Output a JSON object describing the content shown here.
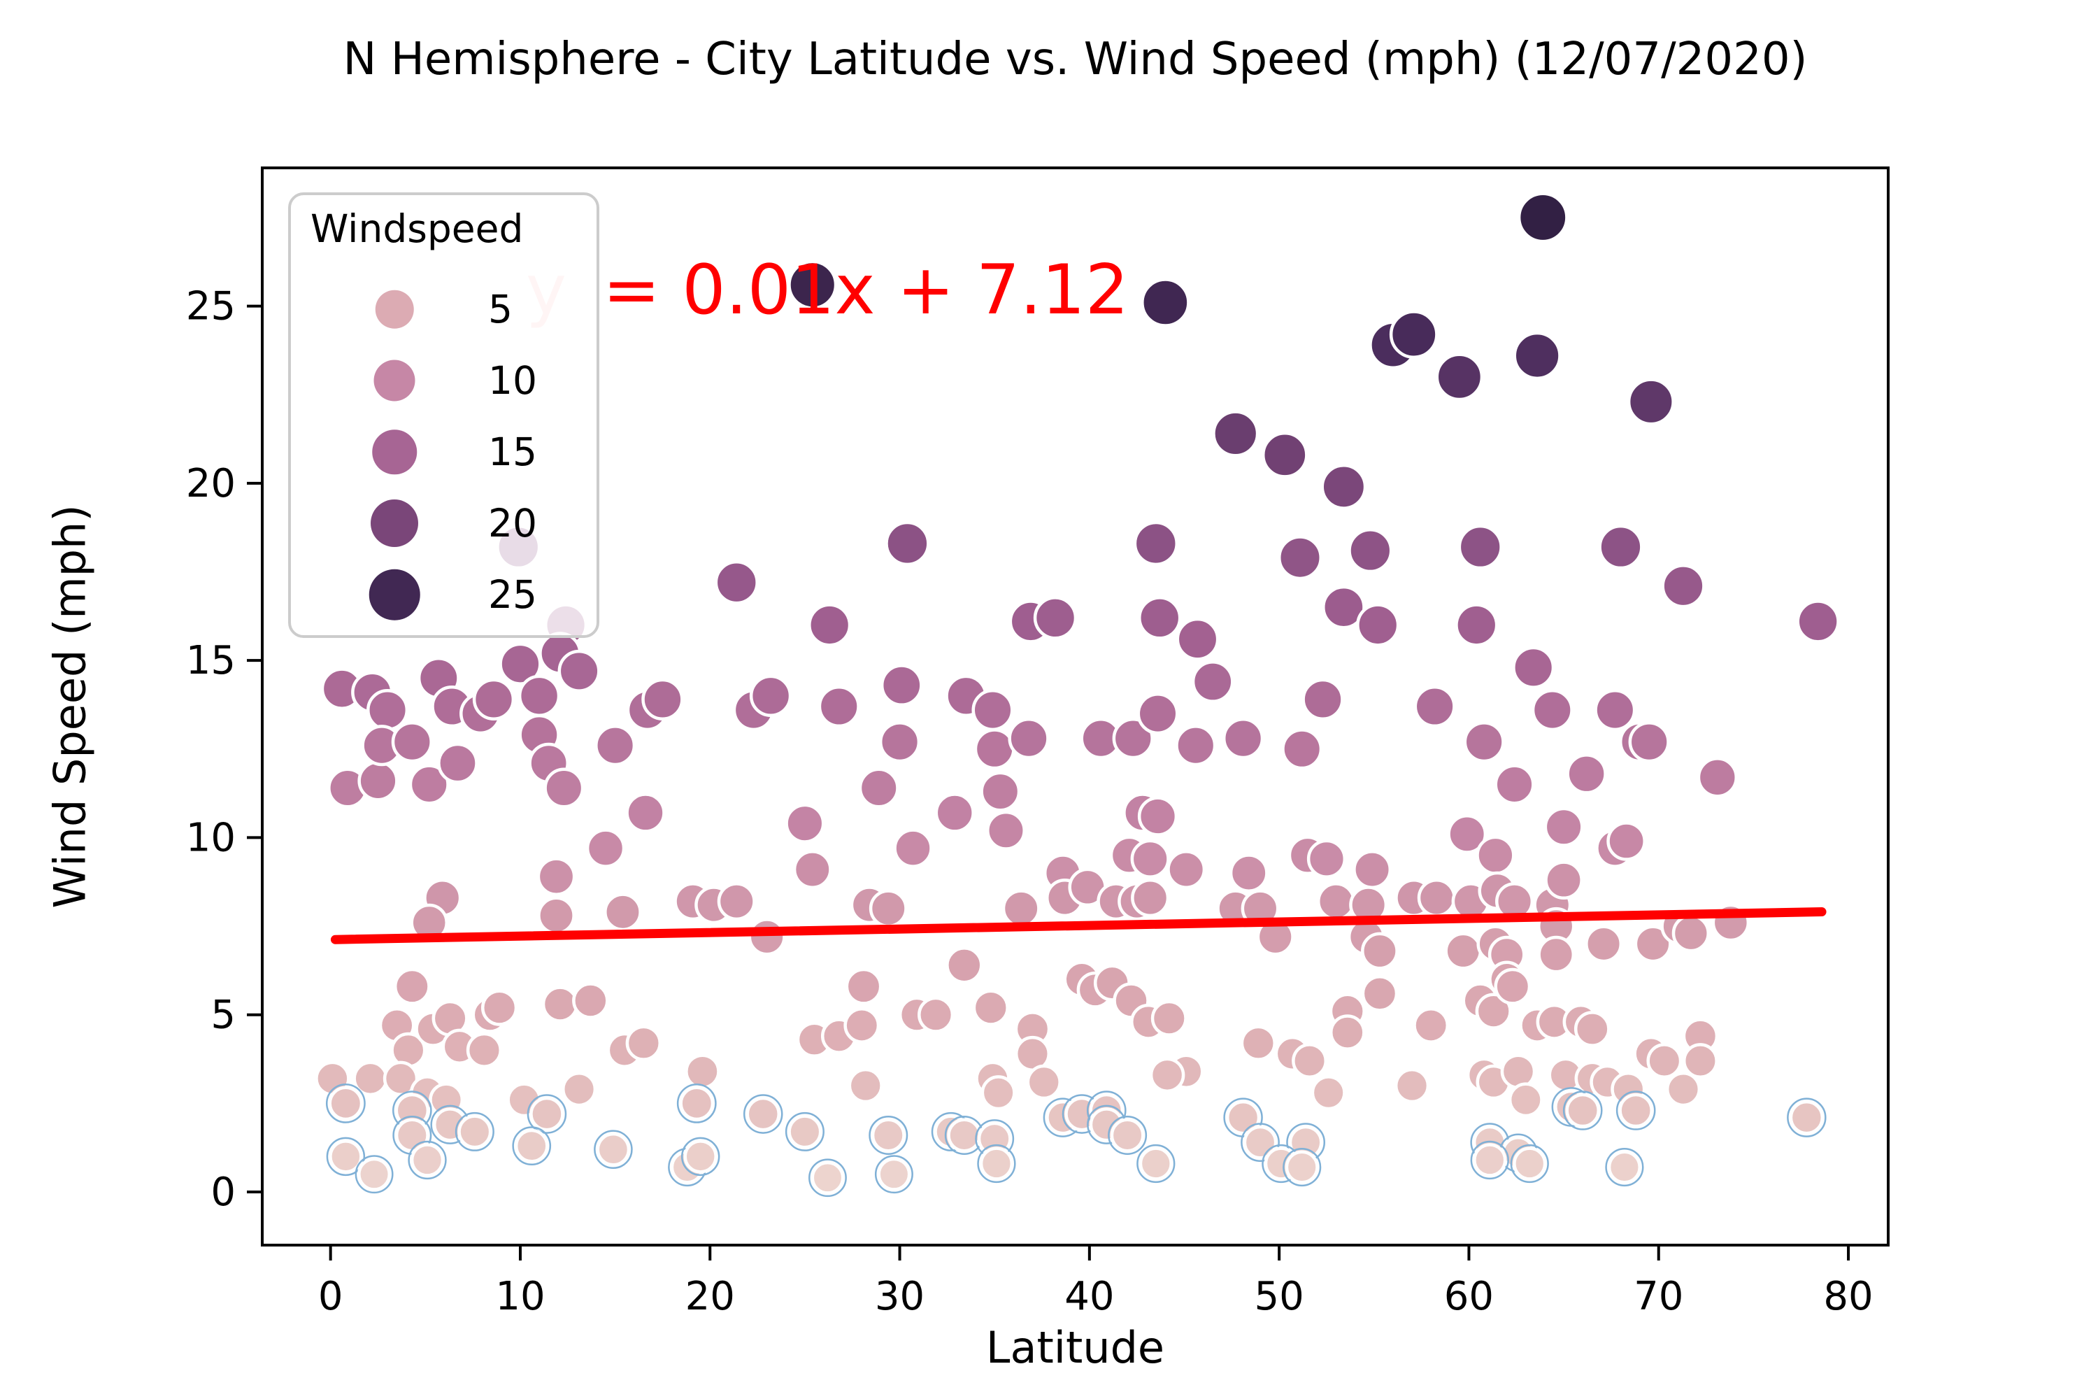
{
  "page": {
    "background": "#ffffff"
  },
  "labels": {
    "title": "N Hemisphere - City Latitude vs. Wind Speed (mph) (12/07/2020)",
    "xlabel": "Latitude",
    "ylabel": "Wind Speed (mph)",
    "legend_title": "Windspeed",
    "equation_y": "y",
    "equation_rest": "= 0.01x + 7.12"
  },
  "legend": {
    "items": [
      {
        "label": "5",
        "value": 5
      },
      {
        "label": "10",
        "value": 10
      },
      {
        "label": "15",
        "value": 15
      },
      {
        "label": "20",
        "value": 20
      },
      {
        "label": "25",
        "value": 25
      }
    ]
  },
  "chart_data": {
    "type": "scatter",
    "title": "N Hemisphere - City Latitude vs. Wind Speed (mph) (12/07/2020)",
    "xlabel": "Latitude",
    "ylabel": "Wind Speed (mph)",
    "xlim": [
      -3.6,
      82.1
    ],
    "ylim": [
      -1.5,
      28.9
    ],
    "x_ticks": [
      0,
      10,
      20,
      30,
      40,
      50,
      60,
      70,
      80
    ],
    "y_ticks": [
      0,
      5,
      10,
      15,
      20,
      25
    ],
    "grid": false,
    "legend_position": "upper left",
    "hue_label": "Windspeed",
    "point_edge_color": "#ffffff",
    "light_point_edge_color": "#7fb0d6",
    "color_stops": [
      [
        0,
        "#eed7d1"
      ],
      [
        2,
        "#e7c6c3"
      ],
      [
        4,
        "#dfb2b6"
      ],
      [
        6,
        "#d8a4af"
      ],
      [
        8,
        "#d199ab"
      ],
      [
        10,
        "#c687a6"
      ],
      [
        12,
        "#bb7a9f"
      ],
      [
        14,
        "#ad6b97"
      ],
      [
        16,
        "#a05f90"
      ],
      [
        18,
        "#8f5487"
      ],
      [
        20,
        "#7a4679"
      ],
      [
        22,
        "#633a6b"
      ],
      [
        24,
        "#4a2c5c"
      ],
      [
        26,
        "#382349"
      ],
      [
        27.5,
        "#322044"
      ]
    ],
    "regression": {
      "slope": 0.01,
      "intercept": 7.12,
      "x_range": [
        0.25,
        78.6
      ],
      "color": "#ff0000",
      "equation": "y = 0.01x + 7.12"
    },
    "points": [
      [
        63.9,
        27.5
      ],
      [
        25.4,
        25.6
      ],
      [
        44.0,
        25.1
      ],
      [
        56.0,
        23.9
      ],
      [
        57.1,
        24.2
      ],
      [
        59.5,
        23.0
      ],
      [
        63.6,
        23.6
      ],
      [
        69.6,
        22.3
      ],
      [
        47.7,
        21.4
      ],
      [
        50.3,
        20.8
      ],
      [
        53.4,
        19.9
      ],
      [
        30.4,
        18.3
      ],
      [
        43.5,
        18.3
      ],
      [
        51.1,
        17.9
      ],
      [
        54.8,
        18.1
      ],
      [
        60.6,
        18.2
      ],
      [
        68.0,
        18.2
      ],
      [
        71.3,
        17.1
      ],
      [
        9.9,
        18.2
      ],
      [
        21.4,
        17.2
      ],
      [
        12.4,
        16.0
      ],
      [
        26.3,
        16.0
      ],
      [
        36.9,
        16.1
      ],
      [
        38.2,
        16.2
      ],
      [
        43.7,
        16.2
      ],
      [
        45.7,
        15.6
      ],
      [
        53.4,
        16.5
      ],
      [
        55.2,
        16.0
      ],
      [
        60.4,
        16.0
      ],
      [
        78.4,
        16.1
      ],
      [
        73.1,
        11.7
      ],
      [
        63.4,
        14.8
      ],
      [
        12.1,
        15.2
      ],
      [
        10.0,
        14.9
      ],
      [
        0.6,
        14.2
      ],
      [
        2.2,
        14.1
      ],
      [
        3.0,
        13.6
      ],
      [
        5.7,
        14.5
      ],
      [
        6.4,
        13.7
      ],
      [
        7.9,
        13.5
      ],
      [
        8.6,
        13.9
      ],
      [
        11.0,
        14.0
      ],
      [
        13.1,
        14.7
      ],
      [
        16.7,
        13.6
      ],
      [
        17.5,
        13.9
      ],
      [
        22.3,
        13.6
      ],
      [
        23.2,
        14.0
      ],
      [
        26.8,
        13.7
      ],
      [
        30.1,
        14.3
      ],
      [
        30.0,
        12.7
      ],
      [
        33.5,
        14.0
      ],
      [
        34.9,
        13.6
      ],
      [
        35.0,
        12.5
      ],
      [
        36.8,
        12.8
      ],
      [
        40.6,
        12.8
      ],
      [
        42.3,
        12.8
      ],
      [
        43.6,
        13.5
      ],
      [
        45.6,
        12.6
      ],
      [
        46.5,
        14.4
      ],
      [
        48.1,
        12.8
      ],
      [
        51.2,
        12.5
      ],
      [
        52.3,
        13.9
      ],
      [
        58.2,
        13.7
      ],
      [
        64.4,
        13.6
      ],
      [
        67.7,
        13.6
      ],
      [
        60.8,
        12.7
      ],
      [
        69.0,
        12.7
      ],
      [
        69.5,
        12.7
      ],
      [
        0.9,
        11.4
      ],
      [
        2.5,
        11.6
      ],
      [
        2.7,
        12.6
      ],
      [
        4.3,
        12.7
      ],
      [
        5.2,
        11.5
      ],
      [
        6.7,
        12.1
      ],
      [
        11.0,
        12.9
      ],
      [
        11.5,
        12.1
      ],
      [
        12.3,
        11.4
      ],
      [
        15.0,
        12.6
      ],
      [
        16.6,
        10.7
      ],
      [
        28.9,
        11.4
      ],
      [
        32.9,
        10.7
      ],
      [
        35.3,
        11.3
      ],
      [
        35.6,
        10.2
      ],
      [
        30.7,
        9.7
      ],
      [
        42.8,
        10.7
      ],
      [
        43.6,
        10.6
      ],
      [
        62.4,
        11.5
      ],
      [
        66.2,
        11.8
      ],
      [
        59.9,
        10.1
      ],
      [
        65.0,
        10.3
      ],
      [
        14.5,
        9.7
      ],
      [
        25.0,
        10.4
      ],
      [
        25.4,
        9.1
      ],
      [
        45.1,
        9.1
      ],
      [
        42.1,
        9.5
      ],
      [
        43.2,
        9.4
      ],
      [
        51.5,
        9.5
      ],
      [
        52.5,
        9.4
      ],
      [
        61.4,
        9.5
      ],
      [
        67.7,
        9.7
      ],
      [
        68.3,
        9.9
      ],
      [
        54.9,
        9.1
      ],
      [
        11.9,
        8.9
      ],
      [
        38.6,
        9.0
      ],
      [
        48.4,
        9.0
      ],
      [
        19.1,
        8.2
      ],
      [
        20.2,
        8.1
      ],
      [
        21.4,
        8.2
      ],
      [
        28.4,
        8.1
      ],
      [
        29.4,
        8.0
      ],
      [
        36.4,
        8.0
      ],
      [
        38.7,
        8.3
      ],
      [
        39.9,
        8.6
      ],
      [
        41.4,
        8.2
      ],
      [
        42.5,
        8.2
      ],
      [
        43.2,
        8.3
      ],
      [
        47.7,
        8.0
      ],
      [
        49.0,
        8.0
      ],
      [
        53.0,
        8.2
      ],
      [
        54.7,
        8.1
      ],
      [
        57.1,
        8.3
      ],
      [
        58.3,
        8.3
      ],
      [
        60.1,
        8.2
      ],
      [
        61.5,
        8.5
      ],
      [
        62.4,
        8.2
      ],
      [
        64.4,
        8.1
      ],
      [
        65.0,
        8.8
      ],
      [
        5.9,
        8.3
      ],
      [
        5.2,
        7.6
      ],
      [
        11.9,
        7.8
      ],
      [
        15.4,
        7.9
      ],
      [
        23.0,
        7.2
      ],
      [
        49.8,
        7.2
      ],
      [
        64.6,
        7.5
      ],
      [
        54.6,
        7.2
      ],
      [
        55.3,
        6.8
      ],
      [
        59.7,
        6.8
      ],
      [
        61.4,
        7.0
      ],
      [
        62.0,
        6.7
      ],
      [
        64.6,
        6.7
      ],
      [
        67.1,
        7.0
      ],
      [
        69.7,
        7.0
      ],
      [
        71.1,
        7.5
      ],
      [
        71.7,
        7.3
      ],
      [
        73.8,
        7.6
      ],
      [
        4.3,
        5.8
      ],
      [
        28.1,
        5.8
      ],
      [
        39.6,
        6.0
      ],
      [
        40.3,
        5.7
      ],
      [
        41.2,
        5.9
      ],
      [
        33.4,
        6.4
      ],
      [
        62.0,
        6.0
      ],
      [
        3.5,
        4.7
      ],
      [
        4.1,
        4.0
      ],
      [
        5.4,
        4.6
      ],
      [
        6.3,
        4.9
      ],
      [
        6.8,
        4.1
      ],
      [
        8.1,
        4.0
      ],
      [
        8.4,
        5.0
      ],
      [
        8.9,
        5.2
      ],
      [
        12.1,
        5.3
      ],
      [
        13.7,
        5.4
      ],
      [
        15.5,
        4.0
      ],
      [
        16.5,
        4.2
      ],
      [
        25.5,
        4.3
      ],
      [
        26.8,
        4.4
      ],
      [
        28.0,
        4.7
      ],
      [
        30.9,
        5.0
      ],
      [
        31.9,
        5.0
      ],
      [
        34.8,
        5.2
      ],
      [
        37.0,
        4.6
      ],
      [
        37.0,
        3.9
      ],
      [
        42.2,
        5.4
      ],
      [
        43.1,
        4.8
      ],
      [
        44.2,
        4.9
      ],
      [
        50.7,
        3.9
      ],
      [
        51.6,
        3.7
      ],
      [
        48.9,
        4.2
      ],
      [
        55.3,
        5.6
      ],
      [
        53.6,
        5.1
      ],
      [
        58.0,
        4.7
      ],
      [
        60.6,
        5.4
      ],
      [
        61.3,
        5.1
      ],
      [
        62.3,
        5.8
      ],
      [
        63.6,
        4.7
      ],
      [
        64.5,
        4.8
      ],
      [
        65.9,
        4.8
      ],
      [
        66.5,
        4.6
      ],
      [
        53.6,
        4.5
      ],
      [
        69.6,
        3.9
      ],
      [
        70.3,
        3.7
      ],
      [
        72.2,
        4.4
      ],
      [
        72.2,
        3.7
      ],
      [
        0.1,
        3.2
      ],
      [
        2.1,
        3.2
      ],
      [
        3.7,
        3.2
      ],
      [
        5.1,
        2.8
      ],
      [
        6.1,
        2.6
      ],
      [
        10.2,
        2.6
      ],
      [
        13.1,
        2.9
      ],
      [
        19.6,
        3.4
      ],
      [
        28.2,
        3.0
      ],
      [
        34.9,
        3.2
      ],
      [
        35.2,
        2.8
      ],
      [
        37.6,
        3.1
      ],
      [
        45.1,
        3.4
      ],
      [
        44.1,
        3.3
      ],
      [
        52.6,
        2.8
      ],
      [
        57.0,
        3.0
      ],
      [
        60.8,
        3.3
      ],
      [
        61.3,
        3.1
      ],
      [
        62.6,
        3.4
      ],
      [
        63.0,
        2.6
      ],
      [
        65.1,
        3.3
      ],
      [
        66.5,
        3.2
      ],
      [
        67.3,
        3.1
      ],
      [
        68.4,
        2.9
      ],
      [
        71.3,
        2.9
      ],
      [
        77.8,
        2.1
      ],
      [
        0.8,
        2.5
      ],
      [
        4.3,
        2.3
      ],
      [
        11.4,
        2.2
      ],
      [
        19.3,
        2.5
      ],
      [
        22.8,
        2.2
      ],
      [
        4.3,
        1.6
      ],
      [
        6.3,
        1.9
      ],
      [
        7.6,
        1.7
      ],
      [
        25.0,
        1.7
      ],
      [
        29.4,
        1.6
      ],
      [
        32.7,
        1.7
      ],
      [
        33.4,
        1.6
      ],
      [
        35.0,
        1.5
      ],
      [
        38.6,
        2.1
      ],
      [
        39.6,
        2.2
      ],
      [
        40.9,
        2.3
      ],
      [
        40.9,
        1.9
      ],
      [
        42.0,
        1.6
      ],
      [
        48.1,
        2.1
      ],
      [
        51.4,
        1.4
      ],
      [
        49.0,
        1.4
      ],
      [
        65.4,
        2.4
      ],
      [
        66.0,
        2.3
      ],
      [
        68.8,
        2.3
      ],
      [
        61.1,
        1.4
      ],
      [
        10.6,
        1.3
      ],
      [
        14.9,
        1.2
      ],
      [
        0.8,
        1.0
      ],
      [
        2.3,
        0.5
      ],
      [
        5.1,
        0.9
      ],
      [
        18.8,
        0.7
      ],
      [
        19.5,
        1.0
      ],
      [
        26.2,
        0.4
      ],
      [
        29.7,
        0.5
      ],
      [
        35.1,
        0.8
      ],
      [
        43.5,
        0.8
      ],
      [
        50.1,
        0.8
      ],
      [
        51.2,
        0.7
      ],
      [
        62.6,
        1.1
      ],
      [
        61.1,
        0.9
      ],
      [
        63.2,
        0.8
      ],
      [
        68.2,
        0.7
      ]
    ]
  }
}
